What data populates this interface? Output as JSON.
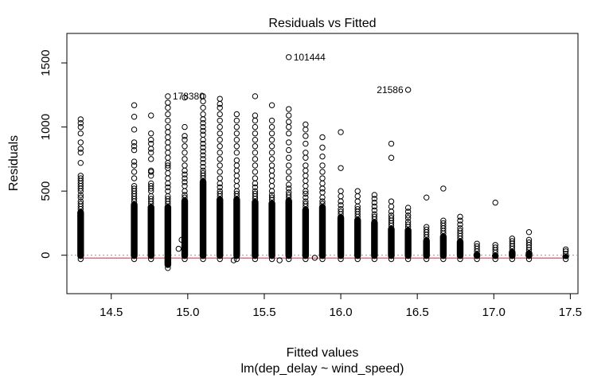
{
  "chart_data": {
    "type": "scatter",
    "title": "Residuals vs Fitted",
    "xlabel": "Fitted values",
    "subtitle": "lm(dep_delay ~ wind_speed)",
    "ylabel": "Residuals",
    "xlim": [
      14.21,
      17.55
    ],
    "ylim": [
      -300,
      1730
    ],
    "x_ticks": [
      "14.5",
      "15.0",
      "15.5",
      "16.0",
      "16.5",
      "17.0",
      "17.5"
    ],
    "x_tick_values": [
      14.5,
      15.0,
      15.5,
      16.0,
      16.5,
      17.0,
      17.5
    ],
    "y_ticks": [
      "0",
      "500",
      "1000",
      "1500"
    ],
    "y_tick_values": [
      0,
      500,
      1000,
      1500
    ],
    "zero_line": 0,
    "smooth_line": [
      [
        14.3,
        -22
      ],
      [
        17.47,
        -22
      ]
    ],
    "columns": [
      {
        "x": 14.3,
        "lo": -30,
        "dense": 360,
        "hi": [
          380,
          400,
          420,
          450,
          470,
          500,
          520,
          540,
          560,
          580,
          600,
          620,
          720,
          800,
          830,
          880,
          950,
          1000,
          1030,
          1060
        ]
      },
      {
        "x": 14.65,
        "lo": -30,
        "dense": 420,
        "hi": [
          440,
          460,
          480,
          500,
          520,
          540,
          600,
          650,
          700,
          730,
          820,
          850,
          880,
          980,
          1080,
          1170
        ]
      },
      {
        "x": 14.76,
        "lo": -30,
        "dense": 400,
        "hi": [
          420,
          440,
          460,
          500,
          520,
          540,
          560,
          620,
          650,
          660,
          750,
          800,
          830,
          870,
          900,
          950,
          1090
        ]
      },
      {
        "x": 14.87,
        "lo": -100,
        "dense": 400,
        "hi": [
          420,
          440,
          460,
          500,
          530,
          560,
          600,
          640,
          680,
          700,
          720,
          760,
          800,
          840,
          880,
          920,
          960,
          1000,
          1050,
          1100,
          1150,
          1190,
          1240
        ]
      },
      {
        "x": 14.98,
        "lo": -30,
        "dense": 450,
        "hi": [
          470,
          500,
          540,
          570,
          600,
          630,
          660,
          700,
          750,
          800,
          850,
          900,
          930,
          1000,
          1230
        ]
      },
      {
        "x": 15.1,
        "lo": -30,
        "dense": 600,
        "hi": [
          620,
          640,
          660,
          690,
          720,
          750,
          780,
          810,
          840,
          870,
          900,
          940,
          970,
          1000,
          1030,
          1060,
          1100,
          1150,
          1200,
          1240
        ]
      },
      {
        "x": 15.21,
        "lo": -30,
        "dense": 460,
        "hi": [
          480,
          500,
          530,
          560,
          600,
          650,
          700,
          750,
          800,
          850,
          900,
          950,
          1000,
          1050,
          1100,
          1150,
          1180,
          1220
        ]
      },
      {
        "x": 15.32,
        "lo": -30,
        "dense": 460,
        "hi": [
          480,
          500,
          540,
          580,
          620,
          660,
          700,
          740,
          800,
          850,
          900,
          950,
          1000,
          1050,
          1100
        ]
      },
      {
        "x": 15.44,
        "lo": -30,
        "dense": 440,
        "hi": [
          460,
          480,
          500,
          530,
          560,
          600,
          650,
          700,
          750,
          800,
          850,
          900,
          950,
          1000,
          1050,
          1090,
          1240
        ]
      },
      {
        "x": 15.55,
        "lo": -30,
        "dense": 430,
        "hi": [
          450,
          470,
          500,
          540,
          580,
          620,
          660,
          700,
          750,
          800,
          850,
          900,
          950,
          1000,
          1050,
          1170
        ]
      },
      {
        "x": 15.66,
        "lo": -30,
        "dense": 450,
        "hi": [
          470,
          490,
          520,
          550,
          600,
          650,
          700,
          760,
          820,
          880,
          950,
          1000,
          1040,
          1090,
          1140,
          1545
        ]
      },
      {
        "x": 15.77,
        "lo": -30,
        "dense": 380,
        "hi": [
          400,
          420,
          450,
          480,
          500,
          540,
          580,
          620,
          660,
          700,
          760,
          800,
          870,
          930,
          980,
          1020
        ]
      },
      {
        "x": 15.88,
        "lo": -30,
        "dense": 400,
        "hi": [
          420,
          450,
          490,
          520,
          560,
          600,
          650,
          700,
          770,
          840,
          920
        ]
      },
      {
        "x": 16.0,
        "lo": -30,
        "dense": 320,
        "hi": [
          340,
          360,
          390,
          420,
          460,
          500,
          680,
          960
        ]
      },
      {
        "x": 16.11,
        "lo": -30,
        "dense": 300,
        "hi": [
          320,
          340,
          360,
          380,
          420,
          460,
          500
        ]
      },
      {
        "x": 16.22,
        "lo": -30,
        "dense": 280,
        "hi": [
          300,
          320,
          350,
          380,
          410,
          440,
          470
        ]
      },
      {
        "x": 16.33,
        "lo": -30,
        "dense": 230,
        "hi": [
          250,
          270,
          290,
          310,
          340,
          380,
          420,
          760,
          870
        ]
      },
      {
        "x": 16.44,
        "lo": -30,
        "dense": 220,
        "hi": [
          240,
          260,
          290,
          310,
          340,
          370,
          1290
        ]
      },
      {
        "x": 16.56,
        "lo": -30,
        "dense": 140,
        "hi": [
          160,
          180,
          200,
          220,
          450
        ]
      },
      {
        "x": 16.67,
        "lo": -30,
        "dense": 170,
        "hi": [
          190,
          210,
          230,
          250,
          270,
          520
        ]
      },
      {
        "x": 16.78,
        "lo": -30,
        "dense": 130,
        "hi": [
          150,
          170,
          190,
          210,
          240,
          270,
          300
        ]
      },
      {
        "x": 16.89,
        "lo": -30,
        "dense": 30,
        "hi": [
          50,
          70,
          90
        ]
      },
      {
        "x": 17.01,
        "lo": -30,
        "dense": 20,
        "hi": [
          40,
          60,
          80,
          410
        ]
      },
      {
        "x": 17.12,
        "lo": -30,
        "dense": 50,
        "hi": [
          70,
          90,
          110,
          130
        ]
      },
      {
        "x": 17.23,
        "lo": -30,
        "dense": 40,
        "hi": [
          60,
          80,
          100,
          120,
          180
        ]
      },
      {
        "x": 17.47,
        "lo": -30,
        "dense": 10,
        "hi": [
          30,
          45
        ]
      }
    ],
    "extra_points": [
      [
        14.96,
        120
      ],
      [
        14.94,
        50
      ],
      [
        15.3,
        -40
      ],
      [
        15.6,
        -40
      ],
      [
        15.83,
        -20
      ]
    ],
    "annotations": [
      {
        "label": "101444",
        "x": 15.66,
        "y": 1545,
        "side": "right"
      },
      {
        "label": "178380",
        "x": 14.87,
        "y": 1240,
        "side": "right"
      },
      {
        "label": "21586",
        "x": 16.44,
        "y": 1290,
        "side": "left"
      }
    ],
    "colors": {
      "points": "#000000",
      "smooth": "#DF536B",
      "zero_line": "#999999"
    }
  }
}
